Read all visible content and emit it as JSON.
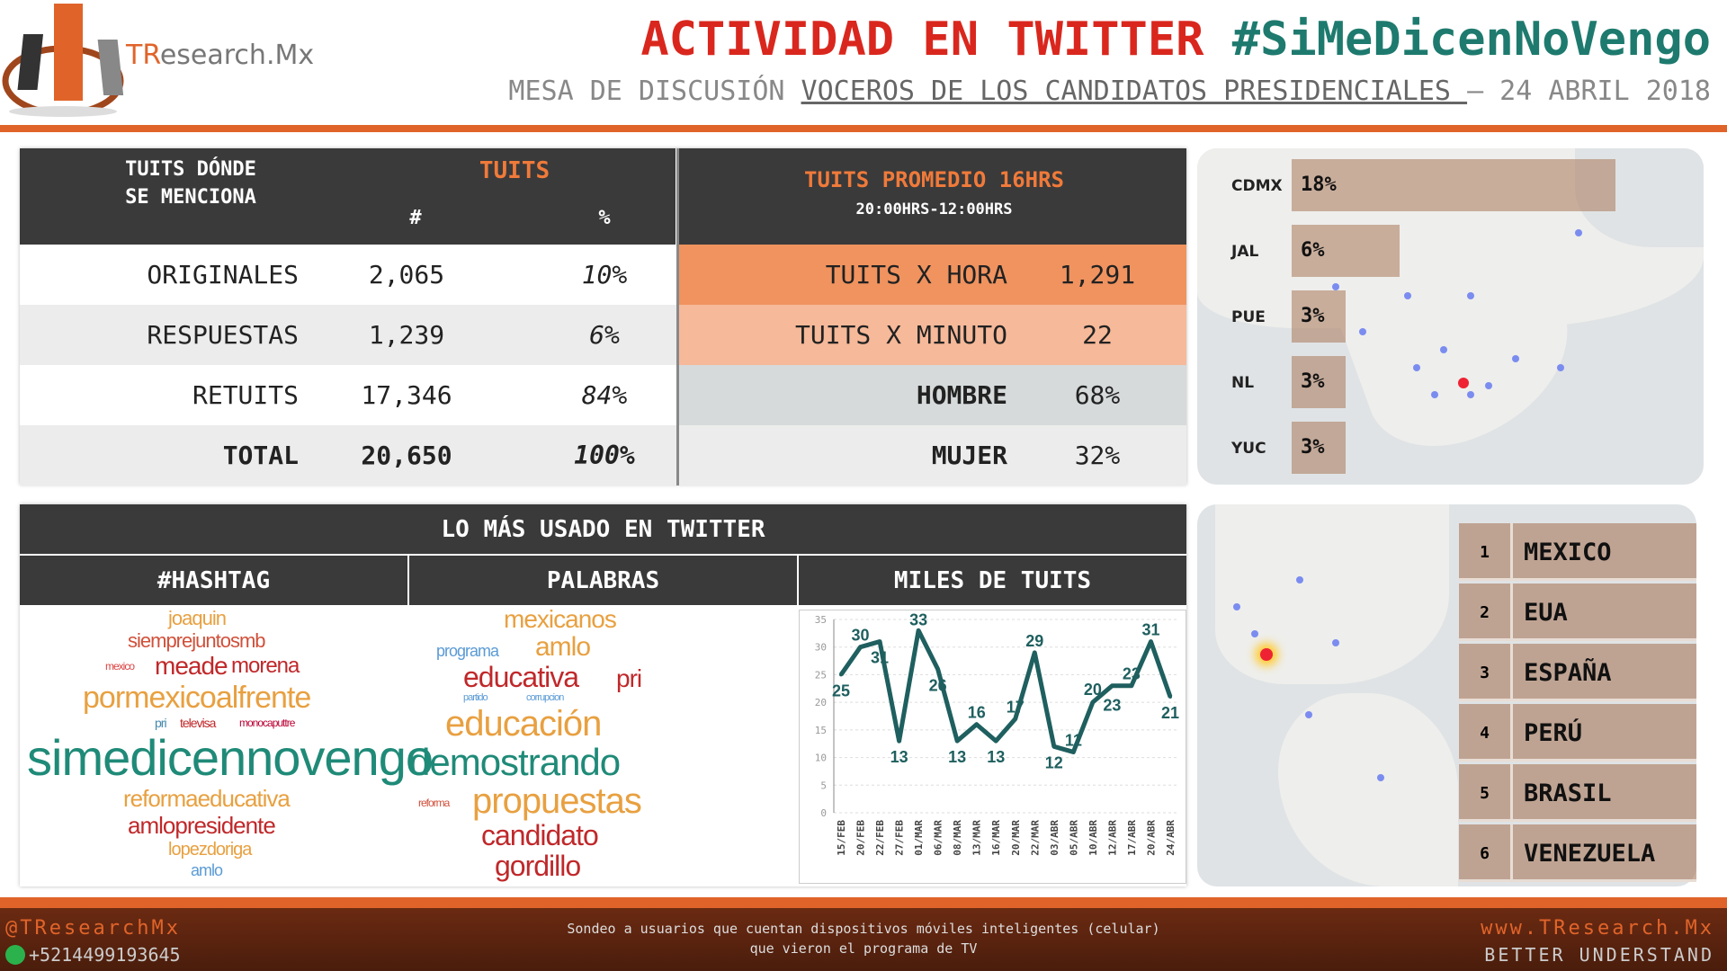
{
  "header": {
    "logo_text": "TResearch.Mx",
    "logo_text_accent": "TR",
    "logo_text_rest": "esearch.Mx",
    "title_main": "ACTIVIDAD EN TWITTER ",
    "title_hashtag": "#SiMeDicenNoVengo",
    "subtitle_pre": "MESA DE DISCUSIÓN ",
    "subtitle_link": "VOCEROS DE LOS CANDIDATOS PRESIDENCIALES ",
    "subtitle_post": " – 24 ABRIL 2018"
  },
  "tweets_table": {
    "col_label": "TUITS DÓNDE SE MENCIONA",
    "col_group": "TUITS",
    "col_num": "#",
    "col_pct": "%",
    "rows": [
      {
        "label": "ORIGINALES",
        "num": "2,065",
        "pct": "10%"
      },
      {
        "label": "RESPUESTAS",
        "num": "1,239",
        "pct": "6%"
      },
      {
        "label": "RETUITS",
        "num": "17,346",
        "pct": "84%"
      },
      {
        "label": "TOTAL",
        "num": "20,650",
        "pct": "100%"
      }
    ]
  },
  "average": {
    "title": "TUITS PROMEDIO 16HRS",
    "range": "20:00HRS-12:00HRS",
    "rows": [
      {
        "label": "TUITS X HORA",
        "value": "1,291"
      },
      {
        "label": "TUITS X MINUTO",
        "value": "22"
      },
      {
        "label": "HOMBRE",
        "value": "68%"
      },
      {
        "label": "MUJER",
        "value": "32%"
      }
    ]
  },
  "states": [
    {
      "label": "CDMX",
      "value": "18%",
      "share": 18
    },
    {
      "label": "JAL",
      "value": "6%",
      "share": 6
    },
    {
      "label": "PUE",
      "value": "3%",
      "share": 3
    },
    {
      "label": "NL",
      "value": "3%",
      "share": 3
    },
    {
      "label": "YUC",
      "value": "3%",
      "share": 3
    }
  ],
  "most_used": {
    "title": "LO MÁS USADO EN TWITTER",
    "col_hashtag": "#HASHTAG",
    "col_words": "PALABRAS",
    "col_chart": "MILES DE TUITS",
    "hashtags": [
      "joaquin",
      "siemprejuntosmb",
      "meade",
      "morena",
      "mexico",
      "pormexicoalfrente",
      "pri",
      "televisa",
      "monocaputtre",
      "simedicennovengo",
      "reformaeducativa",
      "amlopresidente",
      "lopezdoriga",
      "amlo"
    ],
    "words": [
      "mexicanos",
      "programa",
      "amlo",
      "educativa",
      "pri",
      "partido",
      "corrupcion",
      "educación",
      "demostrando",
      "reforma",
      "propuestas",
      "candidato",
      "gordillo"
    ]
  },
  "countries": [
    {
      "rank": "1",
      "name": "MEXICO"
    },
    {
      "rank": "2",
      "name": "EUA"
    },
    {
      "rank": "3",
      "name": "ESPAÑA"
    },
    {
      "rank": "4",
      "name": "PERÚ"
    },
    {
      "rank": "5",
      "name": "BRASIL"
    },
    {
      "rank": "6",
      "name": "VENEZUELA"
    }
  ],
  "chart_data": {
    "type": "line",
    "title": "MILES DE TUITS",
    "categories": [
      "15/FEB",
      "20/FEB",
      "22/FEB",
      "27/FEB",
      "01/MAR",
      "06/MAR",
      "08/MAR",
      "13/MAR",
      "16/MAR",
      "20/MAR",
      "22/MAR",
      "03/ABR",
      "05/ABR",
      "10/ABR",
      "12/ABR",
      "17/ABR",
      "20/ABR",
      "24/ABR"
    ],
    "values": [
      25,
      30,
      31,
      13,
      33,
      26,
      13,
      16,
      13,
      17,
      29,
      12,
      11,
      20,
      23,
      23,
      31,
      21
    ],
    "ylim": [
      0,
      35
    ],
    "yticks": [
      0,
      5,
      10,
      15,
      20,
      25,
      30,
      35
    ],
    "grid": true,
    "color": "#1f5f5f"
  },
  "footer": {
    "twitter": "@TResearchMx",
    "phone": "+5214499193645",
    "note_line1": "Sondeo a usuarios que cuentan dispositivos móviles inteligentes (celular)",
    "note_line2": "que vieron el programa de TV",
    "website": "www.TResearch.Mx",
    "slogan": "BETTER UNDERSTAND"
  },
  "colors": {
    "accent": "#e0642a",
    "title_red": "#d9271e",
    "hashtag_teal": "#1e7a6e",
    "dark_header": "#3a3a3a",
    "hora_bg": "#f0935f",
    "minuto_bg": "#f6b999",
    "gender_bg": "#d6dadb"
  }
}
